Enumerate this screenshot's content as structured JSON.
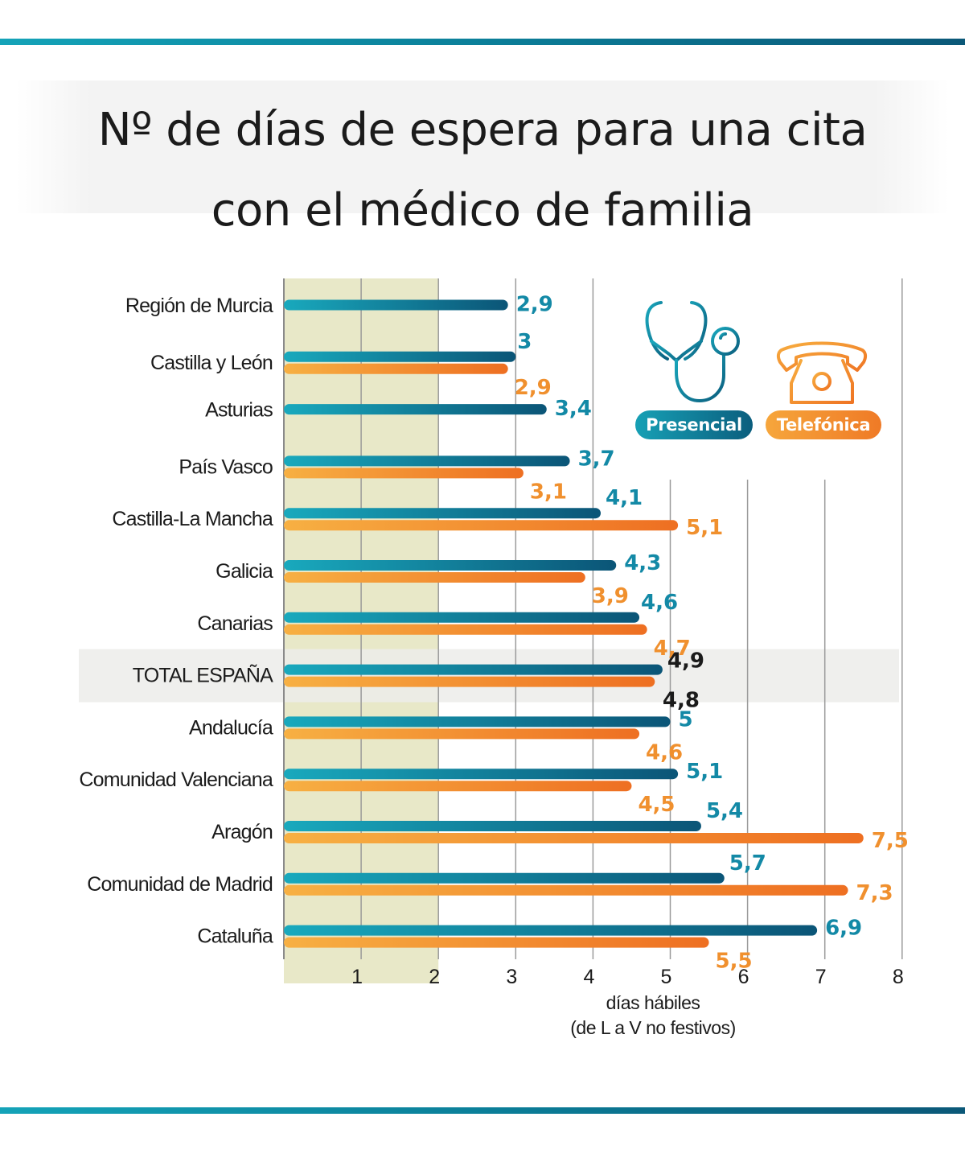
{
  "header": {
    "title_line1": "Nº de días de espera para una cita",
    "title_line2": "con el médico de familia"
  },
  "legend": {
    "presencial": {
      "label": "Presencial",
      "icon": "stethoscope-icon",
      "color": "#0e7f9c"
    },
    "telefonica": {
      "label": "Telefónica",
      "icon": "telephone-icon",
      "color": "#f08a2e"
    }
  },
  "colors": {
    "presencial_start": "#19a9bd",
    "presencial_end": "#0b5577",
    "telefonica_start": "#f7b043",
    "telefonica_end": "#ee6f22",
    "highlight_band": "#e8e8c8",
    "total_row_bg": "#ececea",
    "total_label": "#1b1b1b"
  },
  "chart_data": {
    "type": "bar",
    "orientation": "horizontal",
    "title": "Nº de días de espera para una cita con el médico de familia",
    "xlabel_line1": "días hábiles",
    "xlabel_line2": "(de L a V no festivos)",
    "ylabel": "",
    "xlim": [
      0,
      8
    ],
    "xticks": [
      "1",
      "2",
      "3",
      "4",
      "5",
      "6",
      "7",
      "8"
    ],
    "grid": true,
    "highlighted_range": [
      0,
      2
    ],
    "legend_position": "top-right",
    "categories": [
      "Región de Murcia",
      "Castilla y León",
      "Asturias",
      "País Vasco",
      "Castilla-La Mancha",
      "Galicia",
      "Canarias",
      "TOTAL ESPAÑA",
      "Andalucía",
      "Comunidad Valenciana",
      "Aragón",
      "Comunidad de Madrid",
      "Cataluña"
    ],
    "highlight_category": "TOTAL ESPAÑA",
    "series": [
      {
        "name": "Presencial",
        "values": [
          2.9,
          3,
          3.4,
          3.7,
          4.1,
          4.3,
          4.6,
          4.9,
          5,
          5.1,
          5.4,
          5.7,
          6.9
        ],
        "labels": [
          "2,9",
          "3",
          "3,4",
          "3,7",
          "4,1",
          "4,3",
          "4,6",
          "4,9",
          "5",
          "5,1",
          "5,4",
          "5,7",
          "6,9"
        ]
      },
      {
        "name": "Telefónica",
        "values": [
          null,
          2.9,
          null,
          3.1,
          5.1,
          3.9,
          4.7,
          4.8,
          4.6,
          4.5,
          7.5,
          7.3,
          5.5
        ],
        "labels": [
          null,
          "2,9",
          null,
          "3,1",
          "5,1",
          "3,9",
          "4,7",
          "4,8",
          "4,6",
          "4,5",
          "7,5",
          "7,3",
          "5,5"
        ]
      }
    ]
  }
}
